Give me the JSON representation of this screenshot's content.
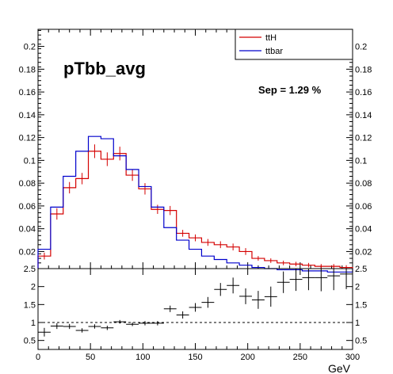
{
  "chart_data": [
    {
      "type": "histogram-step",
      "title": "pTbb_avg",
      "annotation": "Sep = 1.29 %",
      "xlabel": "GeV",
      "xlim": [
        0,
        300
      ],
      "ylim": [
        0.005,
        0.215
      ],
      "bin_edges": [
        0,
        12,
        24,
        36,
        48,
        60,
        72,
        84,
        96,
        108,
        120,
        132,
        144,
        156,
        168,
        180,
        192,
        204,
        216,
        228,
        240,
        252,
        264,
        276,
        288,
        300
      ],
      "yticks": [
        0.02,
        0.04,
        0.06,
        0.08,
        0.1,
        0.12,
        0.14,
        0.16,
        0.18,
        0.2
      ],
      "ytick_labels": [
        "0.02",
        "0.04",
        "0.06",
        "0.08",
        "0.1",
        "0.12",
        "0.14",
        "0.16",
        "0.18",
        "0.2"
      ],
      "legend_position": "top-right",
      "series": [
        {
          "name": "ttH",
          "color": "#d40000",
          "values": [
            0.016,
            0.053,
            0.076,
            0.084,
            0.108,
            0.101,
            0.106,
            0.087,
            0.075,
            0.057,
            0.056,
            0.036,
            0.032,
            0.028,
            0.026,
            0.024,
            0.02,
            0.014,
            0.012,
            0.01,
            0.009,
            0.008,
            0.007,
            0.007,
            0.006
          ],
          "errors": [
            0.003,
            0.005,
            0.005,
            0.005,
            0.006,
            0.006,
            0.006,
            0.005,
            0.005,
            0.004,
            0.004,
            0.003,
            0.003,
            0.003,
            0.003,
            0.003,
            0.003,
            0.002,
            0.002,
            0.002,
            0.002,
            0.002,
            0.002,
            0.002,
            0.002
          ]
        },
        {
          "name": "ttbar",
          "color": "#0000cc",
          "values": [
            0.022,
            0.059,
            0.086,
            0.108,
            0.121,
            0.119,
            0.104,
            0.092,
            0.077,
            0.059,
            0.041,
            0.03,
            0.022,
            0.016,
            0.013,
            0.01,
            0.008,
            0.006,
            0.005,
            0.004,
            0.004,
            0.003,
            0.003,
            0.002,
            0.002
          ],
          "errors": [
            0.001,
            0.001,
            0.001,
            0.001,
            0.001,
            0.001,
            0.001,
            0.001,
            0.001,
            0.001,
            0.001,
            0.001,
            0.001,
            0.001,
            0.001,
            0.001,
            0.001,
            0.001,
            0.001,
            0.001,
            0.001,
            0.001,
            0.001,
            0.001,
            0.001
          ]
        }
      ]
    },
    {
      "type": "ratio-errorbars",
      "xlim": [
        0,
        300
      ],
      "ylim": [
        0.25,
        2.5
      ],
      "reference_line": 1,
      "xticks": [
        0,
        50,
        100,
        150,
        200,
        250,
        300
      ],
      "xtick_labels": [
        "0",
        "50",
        "100",
        "150",
        "200",
        "250",
        "300"
      ],
      "yticks": [
        0.5,
        1,
        1.5,
        2,
        2.5
      ],
      "ytick_labels": [
        "0.5",
        "1",
        "1.5",
        "2",
        "2.5"
      ],
      "points": {
        "x": [
          6,
          18,
          30,
          42,
          54,
          66,
          78,
          90,
          102,
          114,
          126,
          138,
          150,
          162,
          174,
          186,
          198,
          210,
          222,
          234,
          246,
          258,
          270,
          282,
          294
        ],
        "y": [
          0.73,
          0.9,
          0.89,
          0.78,
          0.89,
          0.85,
          1.02,
          0.95,
          0.98,
          0.98,
          1.38,
          1.21,
          1.42,
          1.56,
          1.92,
          2.03,
          1.73,
          1.63,
          1.72,
          2.12,
          2.2,
          2.25,
          2.25,
          2.3,
          2.35
        ],
        "yerr": [
          0.12,
          0.08,
          0.07,
          0.06,
          0.06,
          0.06,
          0.05,
          0.05,
          0.06,
          0.06,
          0.09,
          0.1,
          0.12,
          0.15,
          0.18,
          0.22,
          0.22,
          0.25,
          0.28,
          0.3,
          0.32,
          0.35,
          0.38,
          0.4,
          0.42
        ]
      }
    }
  ]
}
